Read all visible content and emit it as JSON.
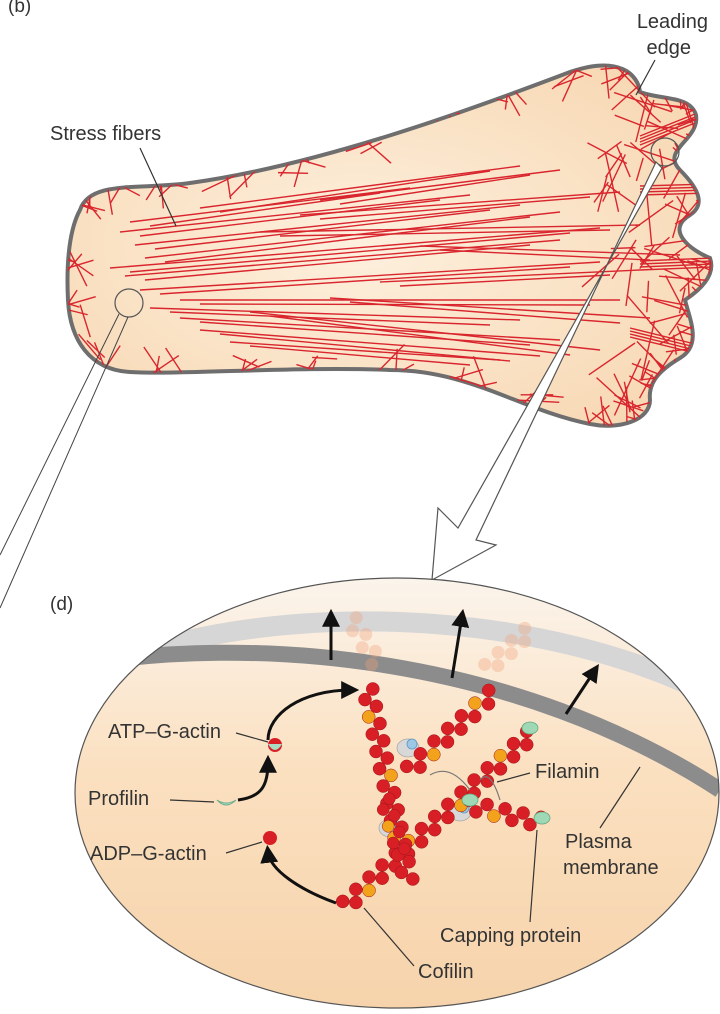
{
  "panel_b": {
    "panel_label": "(b)",
    "stress_fibers": "Stress fibers",
    "leading_edge_line1": "Leading",
    "leading_edge_line2": "edge"
  },
  "panel_d": {
    "panel_label": "(d)",
    "atp_g_actin": "ATP–G-actin",
    "profilin": "Profilin",
    "adp_g_actin": "ADP–G-actin",
    "filamin": "Filamin",
    "plasma_line1": "Plasma",
    "plasma_line2": "membrane",
    "capping_protein": "Capping protein",
    "cofilin": "Cofilin"
  },
  "colors": {
    "cell_fill": "#fbe3c6",
    "cell_outline": "#6e6e6e",
    "fiber_red": "#d9262e",
    "actin_red": "#d81f26",
    "actin_orange": "#f2a21b",
    "membrane_gray": "#8c8c8c",
    "membrane_light": "#d6d6d6",
    "profilin_green": "#a9dcc2",
    "capping_green": "#9fd8b4",
    "arp_blue": "#9cc8e6"
  }
}
